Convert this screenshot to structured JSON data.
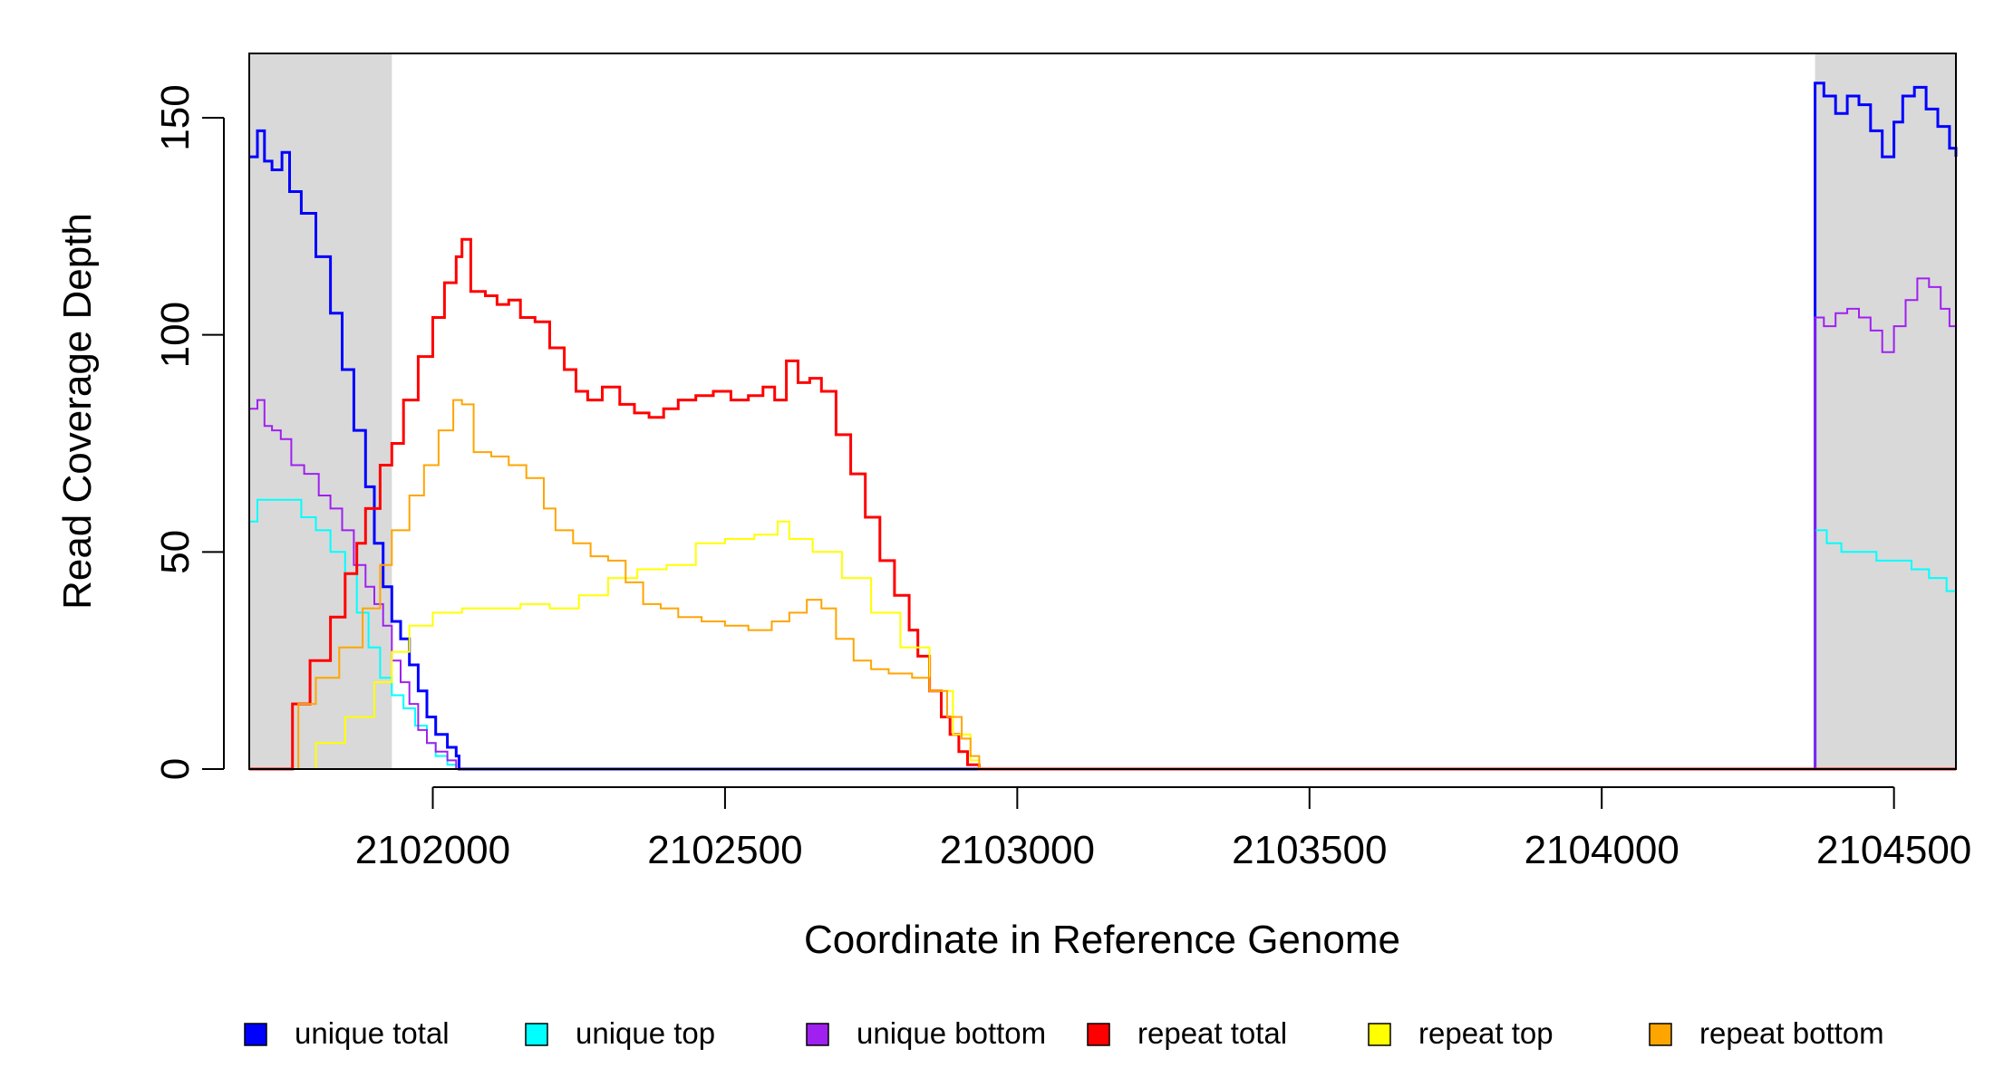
{
  "chart_data": {
    "type": "line",
    "xlabel": "Coordinate in Reference Genome",
    "ylabel": "Read Coverage Depth",
    "xlim": [
      2101686,
      2104606
    ],
    "ylim": [
      0,
      165
    ],
    "x_ticks": [
      2102000,
      2102500,
      2103000,
      2103500,
      2104000,
      2104500
    ],
    "x_tick_labels": [
      "2102000",
      "2102500",
      "2103000",
      "2103500",
      "2104000",
      "2104500"
    ],
    "y_ticks": [
      0,
      50,
      100,
      150
    ],
    "y_tick_labels": [
      "0",
      "50",
      "100",
      "150"
    ],
    "shaded_regions": [
      {
        "x": [
          2101686,
          2101930
        ],
        "color": "#d9d9d9"
      },
      {
        "x": [
          2104365,
          2104606
        ],
        "color": "#d9d9d9"
      }
    ],
    "legend_placement": "bottom",
    "series": [
      {
        "name": "unique total",
        "color": "#0000ff",
        "points": [
          [
            2101686,
            141
          ],
          [
            2101700,
            147
          ],
          [
            2101712,
            140
          ],
          [
            2101725,
            138
          ],
          [
            2101742,
            142
          ],
          [
            2101755,
            133
          ],
          [
            2101775,
            128
          ],
          [
            2101800,
            118
          ],
          [
            2101825,
            105
          ],
          [
            2101845,
            92
          ],
          [
            2101865,
            78
          ],
          [
            2101885,
            65
          ],
          [
            2101900,
            52
          ],
          [
            2101915,
            42
          ],
          [
            2101930,
            34
          ],
          [
            2101945,
            30
          ],
          [
            2101960,
            24
          ],
          [
            2101975,
            18
          ],
          [
            2101990,
            12
          ],
          [
            2102005,
            8
          ],
          [
            2102025,
            5
          ],
          [
            2102040,
            3
          ],
          [
            2102045,
            0
          ],
          [
            2103000,
            0
          ],
          [
            2104362,
            0
          ],
          [
            2104365,
            158
          ],
          [
            2104380,
            155
          ],
          [
            2104400,
            151
          ],
          [
            2104420,
            155
          ],
          [
            2104440,
            153
          ],
          [
            2104460,
            147
          ],
          [
            2104480,
            141
          ],
          [
            2104500,
            149
          ],
          [
            2104515,
            155
          ],
          [
            2104535,
            157
          ],
          [
            2104555,
            152
          ],
          [
            2104575,
            148
          ],
          [
            2104595,
            143
          ],
          [
            2104606,
            141
          ]
        ]
      },
      {
        "name": "unique top",
        "color": "#00ffff",
        "points": [
          [
            2101686,
            57
          ],
          [
            2101700,
            62
          ],
          [
            2101725,
            62
          ],
          [
            2101750,
            62
          ],
          [
            2101775,
            58
          ],
          [
            2101800,
            55
          ],
          [
            2101825,
            50
          ],
          [
            2101850,
            45
          ],
          [
            2101870,
            36
          ],
          [
            2101890,
            28
          ],
          [
            2101910,
            21
          ],
          [
            2101930,
            17
          ],
          [
            2101950,
            14
          ],
          [
            2101970,
            10
          ],
          [
            2101990,
            6
          ],
          [
            2102005,
            3
          ],
          [
            2102025,
            1
          ],
          [
            2102040,
            0
          ],
          [
            2103000,
            0
          ],
          [
            2104362,
            0
          ],
          [
            2104365,
            55
          ],
          [
            2104385,
            52
          ],
          [
            2104410,
            50
          ],
          [
            2104440,
            50
          ],
          [
            2104470,
            48
          ],
          [
            2104500,
            48
          ],
          [
            2104530,
            46
          ],
          [
            2104560,
            44
          ],
          [
            2104590,
            41
          ],
          [
            2104606,
            39
          ]
        ]
      },
      {
        "name": "unique bottom",
        "color": "#a020f0",
        "points": [
          [
            2101686,
            83
          ],
          [
            2101700,
            85
          ],
          [
            2101712,
            79
          ],
          [
            2101725,
            78
          ],
          [
            2101740,
            76
          ],
          [
            2101758,
            70
          ],
          [
            2101780,
            68
          ],
          [
            2101805,
            63
          ],
          [
            2101825,
            60
          ],
          [
            2101845,
            55
          ],
          [
            2101865,
            47
          ],
          [
            2101885,
            42
          ],
          [
            2101900,
            38
          ],
          [
            2101915,
            33
          ],
          [
            2101930,
            25
          ],
          [
            2101945,
            20
          ],
          [
            2101960,
            15
          ],
          [
            2101975,
            9
          ],
          [
            2101990,
            6
          ],
          [
            2102005,
            4
          ],
          [
            2102025,
            2
          ],
          [
            2102040,
            0
          ],
          [
            2103000,
            0
          ],
          [
            2104362,
            0
          ],
          [
            2104365,
            104
          ],
          [
            2104380,
            102
          ],
          [
            2104400,
            105
          ],
          [
            2104420,
            106
          ],
          [
            2104440,
            104
          ],
          [
            2104460,
            101
          ],
          [
            2104480,
            96
          ],
          [
            2104500,
            102
          ],
          [
            2104520,
            108
          ],
          [
            2104540,
            113
          ],
          [
            2104560,
            111
          ],
          [
            2104580,
            106
          ],
          [
            2104595,
            102
          ],
          [
            2104606,
            106
          ]
        ]
      },
      {
        "name": "repeat total",
        "color": "#ff0000",
        "points": [
          [
            2101686,
            0
          ],
          [
            2101745,
            0
          ],
          [
            2101760,
            15
          ],
          [
            2101790,
            25
          ],
          [
            2101825,
            35
          ],
          [
            2101850,
            45
          ],
          [
            2101870,
            52
          ],
          [
            2101885,
            60
          ],
          [
            2101910,
            70
          ],
          [
            2101930,
            75
          ],
          [
            2101950,
            85
          ],
          [
            2101975,
            95
          ],
          [
            2102000,
            104
          ],
          [
            2102020,
            112
          ],
          [
            2102040,
            118
          ],
          [
            2102050,
            122
          ],
          [
            2102065,
            110
          ],
          [
            2102090,
            109
          ],
          [
            2102110,
            107
          ],
          [
            2102130,
            108
          ],
          [
            2102150,
            104
          ],
          [
            2102175,
            103
          ],
          [
            2102200,
            97
          ],
          [
            2102225,
            92
          ],
          [
            2102245,
            87
          ],
          [
            2102265,
            85
          ],
          [
            2102290,
            88
          ],
          [
            2102320,
            84
          ],
          [
            2102345,
            82
          ],
          [
            2102370,
            81
          ],
          [
            2102395,
            83
          ],
          [
            2102420,
            85
          ],
          [
            2102450,
            86
          ],
          [
            2102480,
            87
          ],
          [
            2102510,
            85
          ],
          [
            2102540,
            86
          ],
          [
            2102565,
            88
          ],
          [
            2102585,
            85
          ],
          [
            2102605,
            94
          ],
          [
            2102625,
            89
          ],
          [
            2102645,
            90
          ],
          [
            2102665,
            87
          ],
          [
            2102690,
            77
          ],
          [
            2102715,
            68
          ],
          [
            2102740,
            58
          ],
          [
            2102765,
            48
          ],
          [
            2102790,
            40
          ],
          [
            2102815,
            32
          ],
          [
            2102830,
            26
          ],
          [
            2102850,
            18
          ],
          [
            2102870,
            12
          ],
          [
            2102885,
            8
          ],
          [
            2102900,
            4
          ],
          [
            2102915,
            1
          ],
          [
            2102935,
            0
          ],
          [
            2104606,
            0
          ]
        ]
      },
      {
        "name": "repeat top",
        "color": "#ffff00",
        "points": [
          [
            2101686,
            0
          ],
          [
            2101760,
            0
          ],
          [
            2101800,
            6
          ],
          [
            2101850,
            12
          ],
          [
            2101900,
            20
          ],
          [
            2101930,
            27
          ],
          [
            2101960,
            33
          ],
          [
            2102000,
            36
          ],
          [
            2102050,
            37
          ],
          [
            2102100,
            37
          ],
          [
            2102150,
            38
          ],
          [
            2102200,
            37
          ],
          [
            2102250,
            40
          ],
          [
            2102300,
            44
          ],
          [
            2102350,
            46
          ],
          [
            2102400,
            47
          ],
          [
            2102450,
            52
          ],
          [
            2102500,
            53
          ],
          [
            2102550,
            54
          ],
          [
            2102590,
            57
          ],
          [
            2102610,
            53
          ],
          [
            2102650,
            50
          ],
          [
            2102700,
            44
          ],
          [
            2102750,
            36
          ],
          [
            2102800,
            28
          ],
          [
            2102850,
            18
          ],
          [
            2102890,
            8
          ],
          [
            2102920,
            2
          ],
          [
            2102935,
            0
          ],
          [
            2104606,
            0
          ]
        ]
      },
      {
        "name": "repeat bottom",
        "color": "#ffa500",
        "points": [
          [
            2101686,
            0
          ],
          [
            2101755,
            0
          ],
          [
            2101770,
            15
          ],
          [
            2101800,
            21
          ],
          [
            2101840,
            28
          ],
          [
            2101880,
            37
          ],
          [
            2101910,
            47
          ],
          [
            2101930,
            55
          ],
          [
            2101960,
            63
          ],
          [
            2101985,
            70
          ],
          [
            2102010,
            78
          ],
          [
            2102035,
            85
          ],
          [
            2102050,
            84
          ],
          [
            2102070,
            73
          ],
          [
            2102100,
            72
          ],
          [
            2102130,
            70
          ],
          [
            2102160,
            67
          ],
          [
            2102190,
            60
          ],
          [
            2102210,
            55
          ],
          [
            2102240,
            52
          ],
          [
            2102270,
            49
          ],
          [
            2102300,
            48
          ],
          [
            2102330,
            43
          ],
          [
            2102360,
            38
          ],
          [
            2102390,
            37
          ],
          [
            2102420,
            35
          ],
          [
            2102460,
            34
          ],
          [
            2102500,
            33
          ],
          [
            2102540,
            32
          ],
          [
            2102580,
            34
          ],
          [
            2102610,
            36
          ],
          [
            2102640,
            39
          ],
          [
            2102665,
            37
          ],
          [
            2102690,
            30
          ],
          [
            2102720,
            25
          ],
          [
            2102750,
            23
          ],
          [
            2102780,
            22
          ],
          [
            2102820,
            21
          ],
          [
            2102850,
            18
          ],
          [
            2102880,
            12
          ],
          [
            2102905,
            7
          ],
          [
            2102920,
            3
          ],
          [
            2102935,
            0
          ],
          [
            2104606,
            0
          ]
        ]
      }
    ]
  }
}
